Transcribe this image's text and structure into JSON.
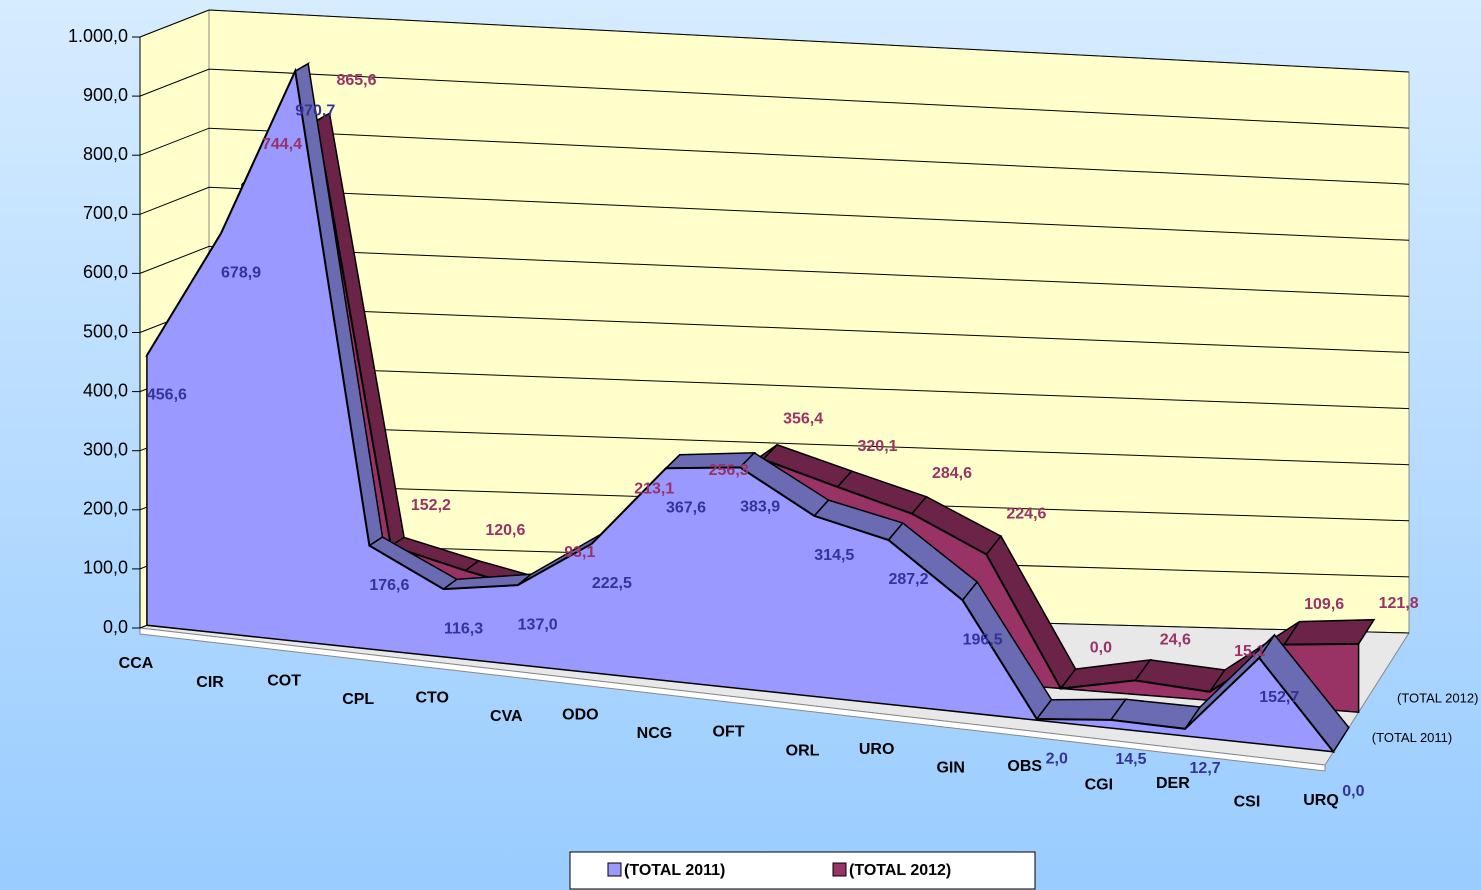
{
  "chart_data": {
    "type": "area3d",
    "categories": [
      "CCA",
      "CIR",
      "COT",
      "CPL",
      "CTO",
      "CVA",
      "ODO",
      "NCG",
      "OFT",
      "ORL",
      "URO",
      "GIN",
      "OBS",
      "CGI",
      "DER",
      "CSI",
      "URQ"
    ],
    "series": [
      {
        "name": "(TOTAL  2011)",
        "color": "#9999ff",
        "values": [
          456.6,
          678.9,
          970.7,
          176.6,
          116.3,
          137.0,
          222.5,
          367.6,
          383.9,
          314.5,
          287.2,
          196.5,
          2.0,
          14.5,
          12.7,
          152.7,
          0.0
        ],
        "value_labels": [
          "456,6",
          "678,9",
          "970,7",
          "176,6",
          "116,3",
          "137,0",
          "222,5",
          "367,6",
          "383,9",
          "314,5",
          "287,2",
          "196,5",
          "2,0",
          "14,5",
          "12,7",
          "152,7",
          "0,0"
        ]
      },
      {
        "name": "(TOTAL  2012)",
        "color": "#993366",
        "values": [
          null,
          744.4,
          865.6,
          152.2,
          120.6,
          93.1,
          213.1,
          256.3,
          356.4,
          320.1,
          284.6,
          224.6,
          0.0,
          24.6,
          15.1,
          109.6,
          121.8
        ],
        "value_labels": [
          null,
          "744,4",
          "865,6",
          "152,2",
          "120,6",
          "93,1",
          "213,1",
          "256,3",
          "356,4",
          "320,1",
          "284,6",
          "224,6",
          "0,0",
          "24,6",
          "15,1",
          "109,6",
          "121,8"
        ]
      }
    ],
    "ylim": [
      0,
      1000
    ],
    "yticks": [
      {
        "value": 0,
        "label": "0,0"
      },
      {
        "value": 100,
        "label": "100,0"
      },
      {
        "value": 200,
        "label": "200,0"
      },
      {
        "value": 300,
        "label": "300,0"
      },
      {
        "value": 400,
        "label": "400,0"
      },
      {
        "value": 500,
        "label": "500,0"
      },
      {
        "value": 600,
        "label": "600,0"
      },
      {
        "value": 700,
        "label": "700,0"
      },
      {
        "value": 800,
        "label": "800,0"
      },
      {
        "value": 900,
        "label": "900,0"
      },
      {
        "value": 1000,
        "label": "1.000,0"
      }
    ],
    "grid": true,
    "legend": "bottom"
  }
}
